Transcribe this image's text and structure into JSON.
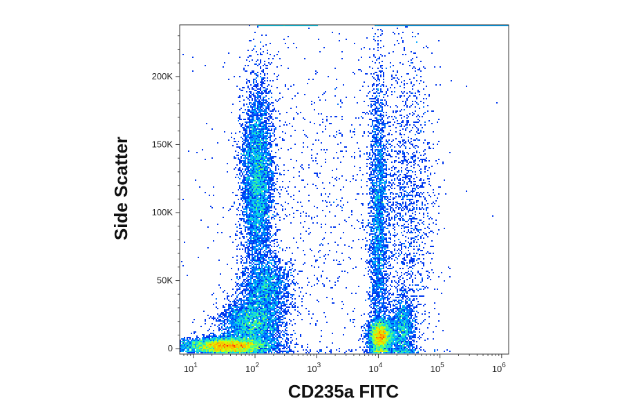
{
  "chart_data": {
    "type": "scatter",
    "subtype": "flow-cytometry density plot",
    "xlabel": "CD235a FITC",
    "ylabel": "Side Scatter",
    "x_scale": "log",
    "xlim": [
      6,
      1300000
    ],
    "ylim": [
      -4000,
      238000
    ],
    "x_ticks": [
      {
        "value": 10,
        "base": "10",
        "exp": "1"
      },
      {
        "value": 100,
        "base": "10",
        "exp": "2"
      },
      {
        "value": 1000,
        "base": "10",
        "exp": "3"
      },
      {
        "value": 10000,
        "base": "10",
        "exp": "4"
      },
      {
        "value": 100000,
        "base": "10",
        "exp": "5"
      },
      {
        "value": 1000000,
        "base": "10",
        "exp": "6"
      }
    ],
    "y_ticks": [
      {
        "value": 0,
        "label": "0"
      },
      {
        "value": 50000,
        "label": "50K"
      },
      {
        "value": 100000,
        "label": "100K"
      },
      {
        "value": 150000,
        "label": "150K"
      },
      {
        "value": 200000,
        "label": "200K"
      }
    ],
    "populations": [
      {
        "x_center": 35,
        "y_center": 2000,
        "x_spread_decades": 0.35,
        "y_spread": 3000,
        "weight": 0.22,
        "peak": "red"
      },
      {
        "x_center": 90,
        "y_center": 18000,
        "x_spread_decades": 0.25,
        "y_spread": 9000,
        "weight": 0.12,
        "peak": "yellow-green"
      },
      {
        "x_center": 150,
        "y_center": 45000,
        "x_spread_decades": 0.2,
        "y_spread": 12000,
        "weight": 0.08,
        "peak": "cyan"
      },
      {
        "x_center": 110,
        "y_center": 125000,
        "x_spread_decades": 0.13,
        "y_spread": 35000,
        "weight": 0.2,
        "peak": "cyan-green"
      },
      {
        "x_center": 11000,
        "y_center": 9000,
        "x_spread_decades": 0.1,
        "y_spread": 6000,
        "weight": 0.12,
        "peak": "red"
      },
      {
        "x_center": 10000,
        "y_center": 90000,
        "x_spread_decades": 0.08,
        "y_spread": 55000,
        "weight": 0.11,
        "peak": "cyan"
      },
      {
        "x_center": 25000,
        "y_center": 15000,
        "x_spread_decades": 0.1,
        "y_spread": 12000,
        "weight": 0.05,
        "peak": "yellow-green"
      },
      {
        "x_center": 30000,
        "y_center": 100000,
        "x_spread_decades": 0.22,
        "y_spread": 60000,
        "weight": 0.06,
        "peak": "blue"
      },
      {
        "x_center": 1000,
        "y_center": 110000,
        "x_spread_decades": 0.9,
        "y_spread": 70000,
        "weight": 0.04,
        "peak": "blue"
      }
    ],
    "colormap": [
      "#0000c8",
      "#0050ff",
      "#00c8ff",
      "#40ff90",
      "#d8ff00",
      "#ffb000",
      "#ff2000"
    ],
    "grid": false,
    "legend": "none"
  }
}
